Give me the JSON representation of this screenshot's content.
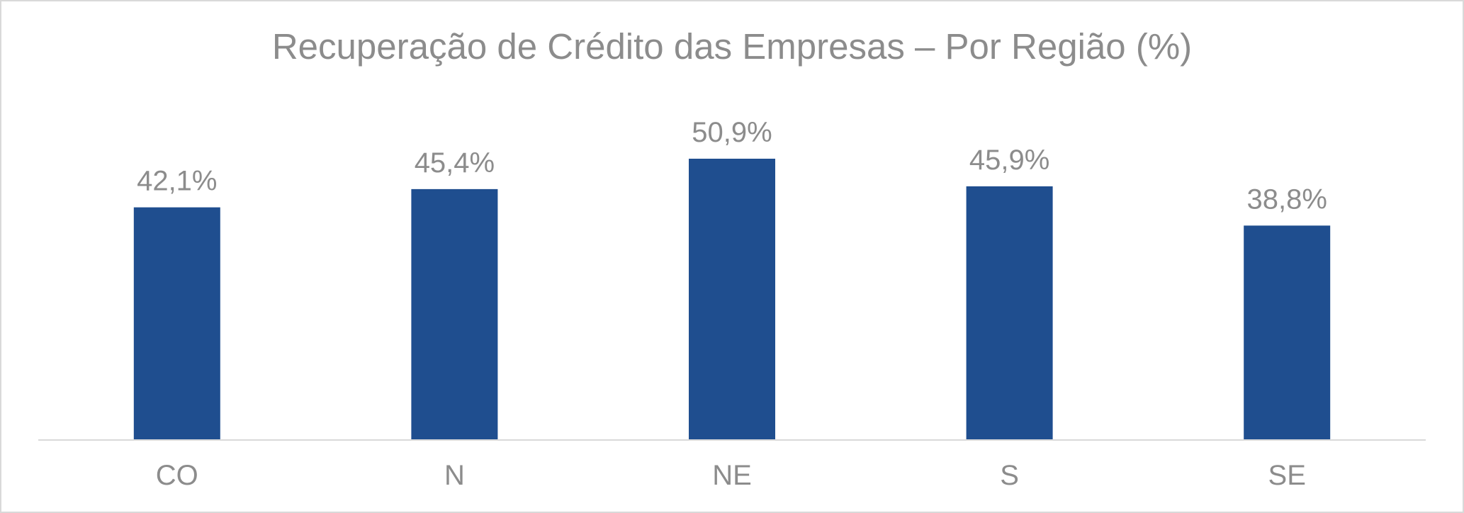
{
  "chart_data": {
    "type": "bar",
    "title": "Recuperação de Crédito das Empresas – Por Região (%)",
    "xlabel": "",
    "ylabel": "",
    "categories": [
      "CO",
      "N",
      "NE",
      "S",
      "SE"
    ],
    "values": [
      42.1,
      45.4,
      50.9,
      45.9,
      38.8
    ],
    "data_labels": [
      "42,1%",
      "45,4%",
      "50,9%",
      "45,9%",
      "38,8%"
    ],
    "ylim": [
      0,
      60
    ],
    "grid": false,
    "legend": "none",
    "colors": {
      "bar": "#1f4e8f",
      "text": "#8c8c8c",
      "axis": "#d9d9d9",
      "border": "#d9d9d9"
    }
  }
}
